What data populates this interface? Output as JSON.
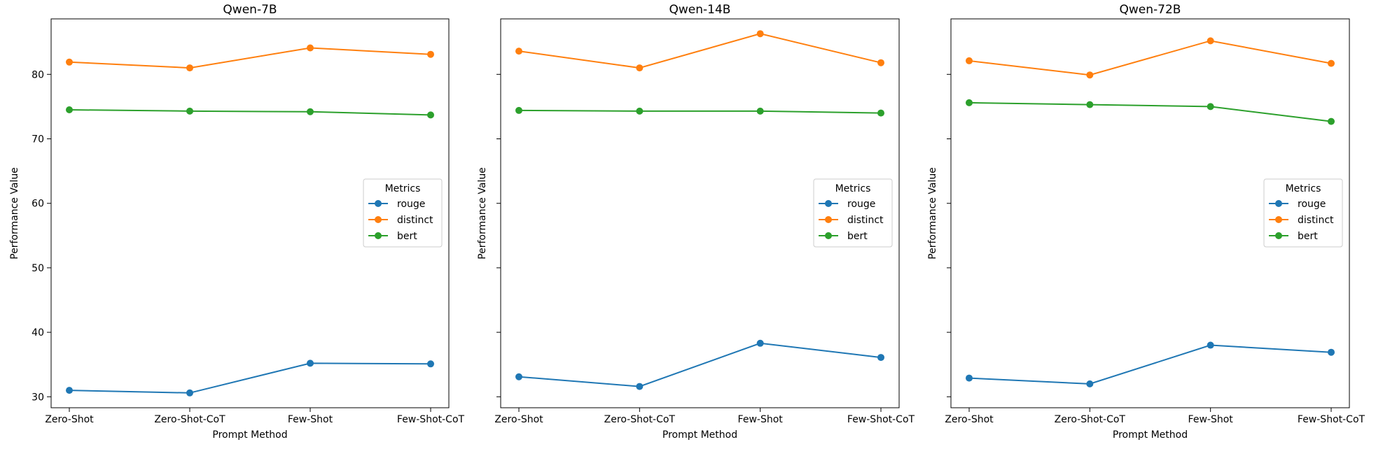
{
  "chart_data": [
    {
      "type": "line",
      "title": "Qwen-7B",
      "xlabel": "Prompt Method",
      "ylabel": "Performance Value",
      "categories": [
        "Zero-Shot",
        "Zero-Shot-CoT",
        "Few-Shot",
        "Few-Shot-CoT"
      ],
      "ylim": [
        28.3,
        88.6
      ],
      "yticks": [
        30,
        40,
        50,
        60,
        70,
        80
      ],
      "show_ytick_labels": true,
      "grid": false,
      "legend": {
        "title": "Metrics",
        "placement": "center-right"
      },
      "series": [
        {
          "name": "rouge",
          "color": "#1f77b4",
          "values": [
            31.0,
            30.6,
            35.2,
            35.1
          ]
        },
        {
          "name": "distinct",
          "color": "#ff7f0e",
          "values": [
            81.9,
            81.0,
            84.1,
            83.1
          ]
        },
        {
          "name": "bert",
          "color": "#2ca02c",
          "values": [
            74.5,
            74.3,
            74.2,
            73.7
          ]
        }
      ]
    },
    {
      "type": "line",
      "title": "Qwen-14B",
      "xlabel": "Prompt Method",
      "ylabel": "Performance Value",
      "categories": [
        "Zero-Shot",
        "Zero-Shot-CoT",
        "Few-Shot",
        "Few-Shot-CoT"
      ],
      "ylim": [
        28.3,
        88.6
      ],
      "yticks": [
        30,
        40,
        50,
        60,
        70,
        80
      ],
      "show_ytick_labels": false,
      "grid": false,
      "legend": {
        "title": "Metrics",
        "placement": "center-right"
      },
      "series": [
        {
          "name": "rouge",
          "color": "#1f77b4",
          "values": [
            33.1,
            31.6,
            38.3,
            36.1
          ]
        },
        {
          "name": "distinct",
          "color": "#ff7f0e",
          "values": [
            83.6,
            81.0,
            86.3,
            81.8
          ]
        },
        {
          "name": "bert",
          "color": "#2ca02c",
          "values": [
            74.4,
            74.3,
            74.3,
            74.0
          ]
        }
      ]
    },
    {
      "type": "line",
      "title": "Qwen-72B",
      "xlabel": "Prompt Method",
      "ylabel": "Performance Value",
      "categories": [
        "Zero-Shot",
        "Zero-Shot-CoT",
        "Few-Shot",
        "Few-Shot-CoT"
      ],
      "ylim": [
        28.3,
        88.6
      ],
      "yticks": [
        30,
        40,
        50,
        60,
        70,
        80
      ],
      "show_ytick_labels": false,
      "grid": false,
      "legend": {
        "title": "Metrics",
        "placement": "center-right"
      },
      "series": [
        {
          "name": "rouge",
          "color": "#1f77b4",
          "values": [
            32.9,
            32.0,
            38.0,
            36.9
          ]
        },
        {
          "name": "distinct",
          "color": "#ff7f0e",
          "values": [
            82.1,
            79.9,
            85.2,
            81.7
          ]
        },
        {
          "name": "bert",
          "color": "#2ca02c",
          "values": [
            75.6,
            75.3,
            75.0,
            72.7
          ]
        }
      ]
    }
  ]
}
